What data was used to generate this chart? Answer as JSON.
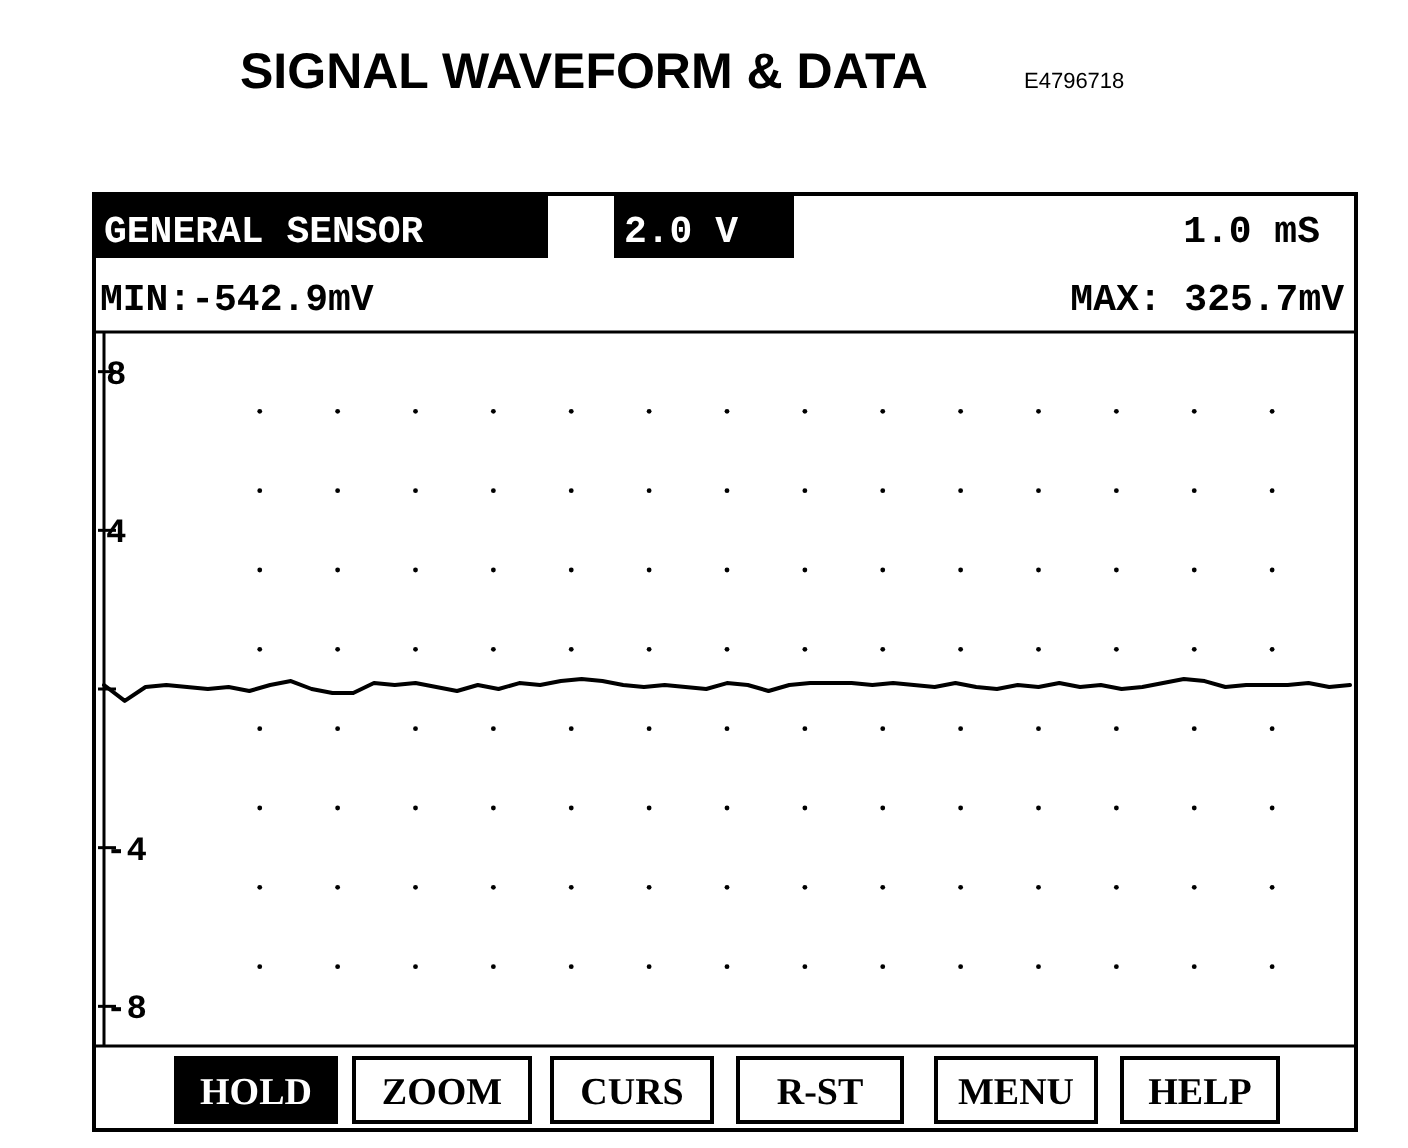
{
  "chart_data": {
    "type": "line",
    "title": "SIGNAL WAVEFORM & DATA",
    "annotations": [
      "E4796718",
      "GENERAL SENSOR",
      "2.0 V",
      "1.0 mS",
      "MIN:-542.9mV",
      "MAX: 325.7mV",
      "HOLD",
      "ZOOM",
      "CURS",
      "R-ST",
      "MENU",
      "HELP"
    ],
    "categories": [
      null,
      null,
      null,
      null,
      null,
      null,
      null,
      null,
      null,
      null,
      null,
      null,
      null,
      null,
      null,
      null,
      null,
      null,
      null,
      null,
      null,
      null,
      null,
      null,
      null,
      null,
      null,
      null,
      null,
      null,
      null,
      null,
      null,
      null,
      null,
      null,
      null,
      null,
      null,
      null,
      null,
      null,
      null,
      null,
      null,
      null,
      null,
      null,
      null,
      null,
      null,
      null,
      null,
      null,
      null,
      null,
      null,
      null,
      null,
      null,
      null
    ],
    "series": [
      {
        "color": "#000000",
        "values": [
          0.1,
          -0.3,
          0.05,
          0.1,
          0.05,
          0,
          0.05,
          -0.05,
          0.1,
          0.2,
          0,
          -0.1,
          -0.1,
          0.15,
          0.1,
          0.15,
          0.05,
          -0.05,
          0.1,
          0,
          0.15,
          0.1,
          0.2,
          0.25,
          0.2,
          0.1,
          0.05,
          0.1,
          0.05,
          0,
          0.15,
          0.1,
          -0.05,
          0.1,
          0.15,
          0.15,
          0.15,
          0.1,
          0.15,
          0.1,
          0.05,
          0.15,
          0.05,
          0,
          0.1,
          0.05,
          0.15,
          0.05,
          0.1,
          0,
          0.05,
          0.15,
          0.25,
          0.2,
          0.05,
          0.1,
          0.1,
          0.1,
          0.15,
          0.05,
          0.1
        ]
      }
    ],
    "ylim": [
      -9,
      9
    ],
    "yticks": [
      8,
      4,
      {
        "value": 0,
        "label": null
      },
      -4,
      -8
    ],
    "tick_labels": "y",
    "marker": "none",
    "line_style": "solid"
  }
}
